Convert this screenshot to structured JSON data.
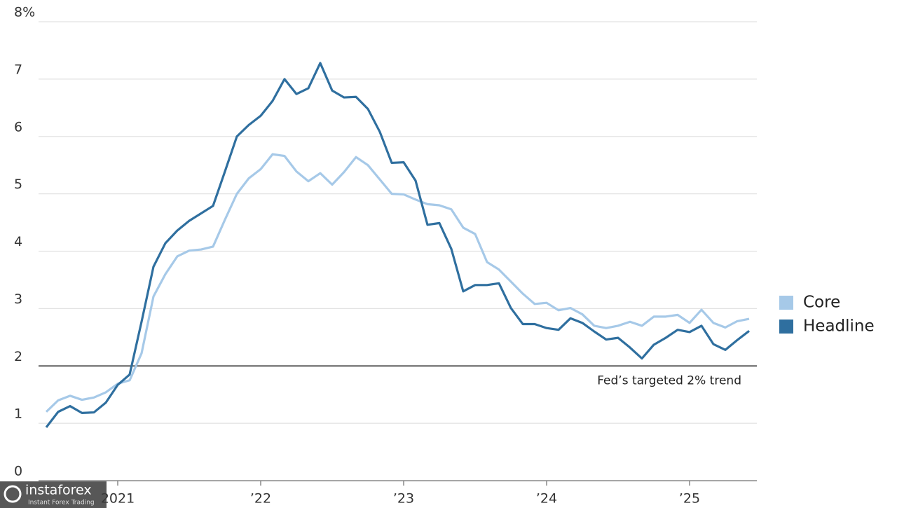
{
  "chart_data": {
    "type": "line",
    "categories": [
      null,
      null,
      null,
      null,
      null,
      null,
      "2021",
      null,
      null,
      null,
      null,
      null,
      null,
      null,
      null,
      null,
      null,
      null,
      "’22",
      null,
      null,
      null,
      null,
      null,
      null,
      null,
      null,
      null,
      null,
      null,
      "’23",
      null,
      null,
      null,
      null,
      null,
      null,
      null,
      null,
      null,
      null,
      null,
      "’24",
      null,
      null,
      null,
      null,
      null,
      null,
      null,
      null,
      null,
      null,
      null,
      "’25",
      null,
      null,
      null,
      null,
      null
    ],
    "series": [
      {
        "name": "Core",
        "color": "#a6c9e8",
        "values": [
          1.2,
          1.4,
          1.48,
          1.41,
          1.45,
          1.54,
          1.69,
          1.75,
          2.22,
          3.21,
          3.6,
          3.91,
          4.01,
          4.03,
          4.08,
          4.55,
          5.0,
          5.27,
          5.43,
          5.69,
          5.66,
          5.39,
          5.22,
          5.36,
          5.16,
          5.38,
          5.64,
          5.5,
          5.25,
          5.0,
          4.99,
          4.9,
          4.82,
          4.8,
          4.73,
          4.41,
          4.3,
          3.81,
          3.68,
          3.47,
          3.26,
          3.08,
          3.1,
          2.97,
          3.01,
          2.9,
          2.7,
          2.66,
          2.7,
          2.77,
          2.7,
          2.86,
          2.86,
          2.89,
          2.75,
          2.98,
          2.75,
          2.67,
          2.78,
          2.82
        ]
      },
      {
        "name": "Headline",
        "color": "#2f6f9f",
        "values": [
          0.93,
          1.2,
          1.3,
          1.18,
          1.19,
          1.36,
          1.67,
          1.85,
          2.77,
          3.73,
          4.14,
          4.36,
          4.53,
          4.66,
          4.79,
          5.39,
          6.0,
          6.2,
          6.36,
          6.62,
          7.0,
          6.74,
          6.84,
          7.28,
          6.8,
          6.68,
          6.69,
          6.48,
          6.08,
          5.54,
          5.55,
          5.23,
          4.46,
          4.49,
          4.04,
          3.3,
          3.41,
          3.41,
          3.44,
          3.01,
          2.73,
          2.73,
          2.66,
          2.63,
          2.83,
          2.75,
          2.6,
          2.46,
          2.49,
          2.32,
          2.13,
          2.37,
          2.49,
          2.63,
          2.59,
          2.7,
          2.38,
          2.28,
          2.45,
          2.61
        ]
      }
    ],
    "ylim": [
      0,
      8
    ],
    "yticks": [
      0,
      1,
      2,
      3,
      4,
      5,
      6,
      7,
      {
        "value": 8,
        "label": "8%"
      }
    ],
    "grid": true,
    "legend": "right",
    "reference_lines": [
      {
        "value": 2,
        "label": "Fed’s targeted 2% trend"
      }
    ]
  },
  "watermark": {
    "title": "instaforex",
    "subtitle": "Instant Forex Trading"
  }
}
